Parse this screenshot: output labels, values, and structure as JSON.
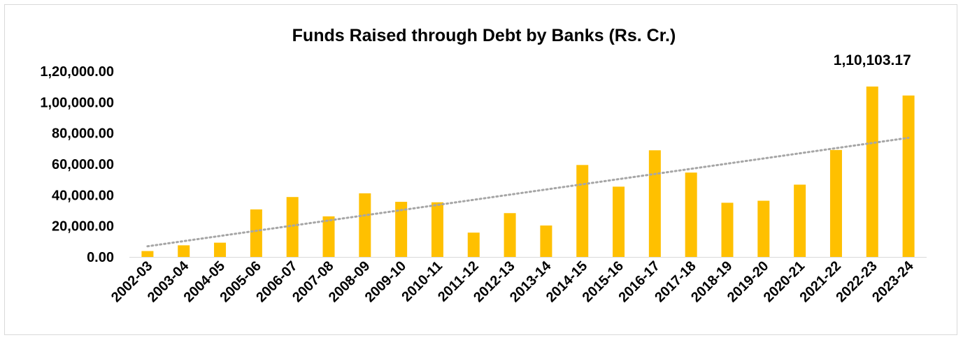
{
  "chart_data": {
    "type": "bar",
    "title": "Funds Raised through Debt by Banks (Rs. Cr.)",
    "xlabel": "",
    "ylabel": "",
    "categories": [
      "2002-03",
      "2003-04",
      "2004-05",
      "2005-06",
      "2006-07",
      "2007-08",
      "2008-09",
      "2009-10",
      "2010-11",
      "2011-12",
      "2012-13",
      "2013-14",
      "2014-15",
      "2015-16",
      "2016-17",
      "2017-18",
      "2018-19",
      "2019-20",
      "2020-21",
      "2021-22",
      "2022-23",
      "2023-24"
    ],
    "values": [
      3800,
      7500,
      9200,
      30700,
      38700,
      26200,
      41100,
      35600,
      35300,
      15700,
      28300,
      20300,
      59400,
      45400,
      68900,
      54500,
      35000,
      36300,
      46700,
      69100,
      110103.17,
      104300
    ],
    "ylim": [
      0,
      120000
    ],
    "yticks": [
      "0.00",
      "20,000.00",
      "40,000.00",
      "60,000.00",
      "80,000.00",
      "1,00,000.00",
      "1,20,000.00"
    ],
    "ytick_values": [
      0,
      20000,
      40000,
      60000,
      80000,
      100000,
      120000
    ],
    "data_labels": [
      {
        "category": "2022-23",
        "text": "1,10,103.17"
      }
    ],
    "trendline": {
      "type": "linear",
      "style": "dotted"
    },
    "grid": false,
    "legend": "none",
    "colors": {
      "bar": "#FFC000",
      "trend": "#A6A6A6",
      "axis": "#d9d9d9"
    }
  }
}
